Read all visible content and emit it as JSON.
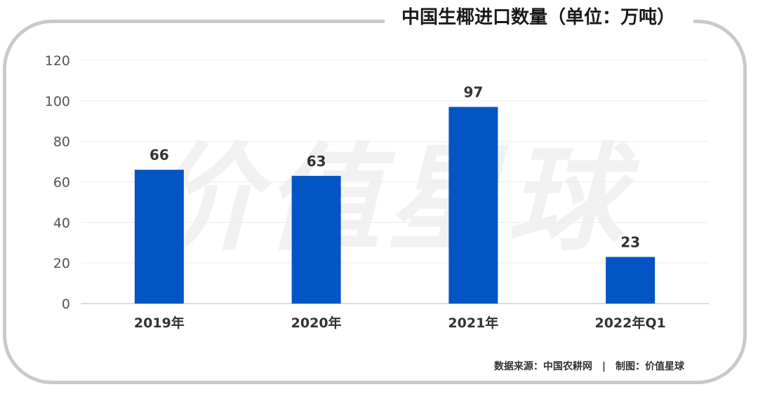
{
  "chart_data": {
    "type": "bar",
    "title": "中国生椰进口数量（单位：万吨）",
    "categories": [
      "2019年",
      "2020年",
      "2021年",
      "2022年Q1"
    ],
    "values": [
      66,
      63,
      97,
      23
    ],
    "ylim": [
      0,
      120
    ],
    "yticks": [
      0,
      20,
      40,
      60,
      80,
      100,
      120
    ],
    "xlabel": "",
    "ylabel": "",
    "grid": true,
    "bar_color": "#0455c4"
  },
  "watermark": "价值星球",
  "footer": {
    "source": "数据来源：中国农耕网",
    "separator": "|",
    "credit": "制图：价值星球"
  }
}
